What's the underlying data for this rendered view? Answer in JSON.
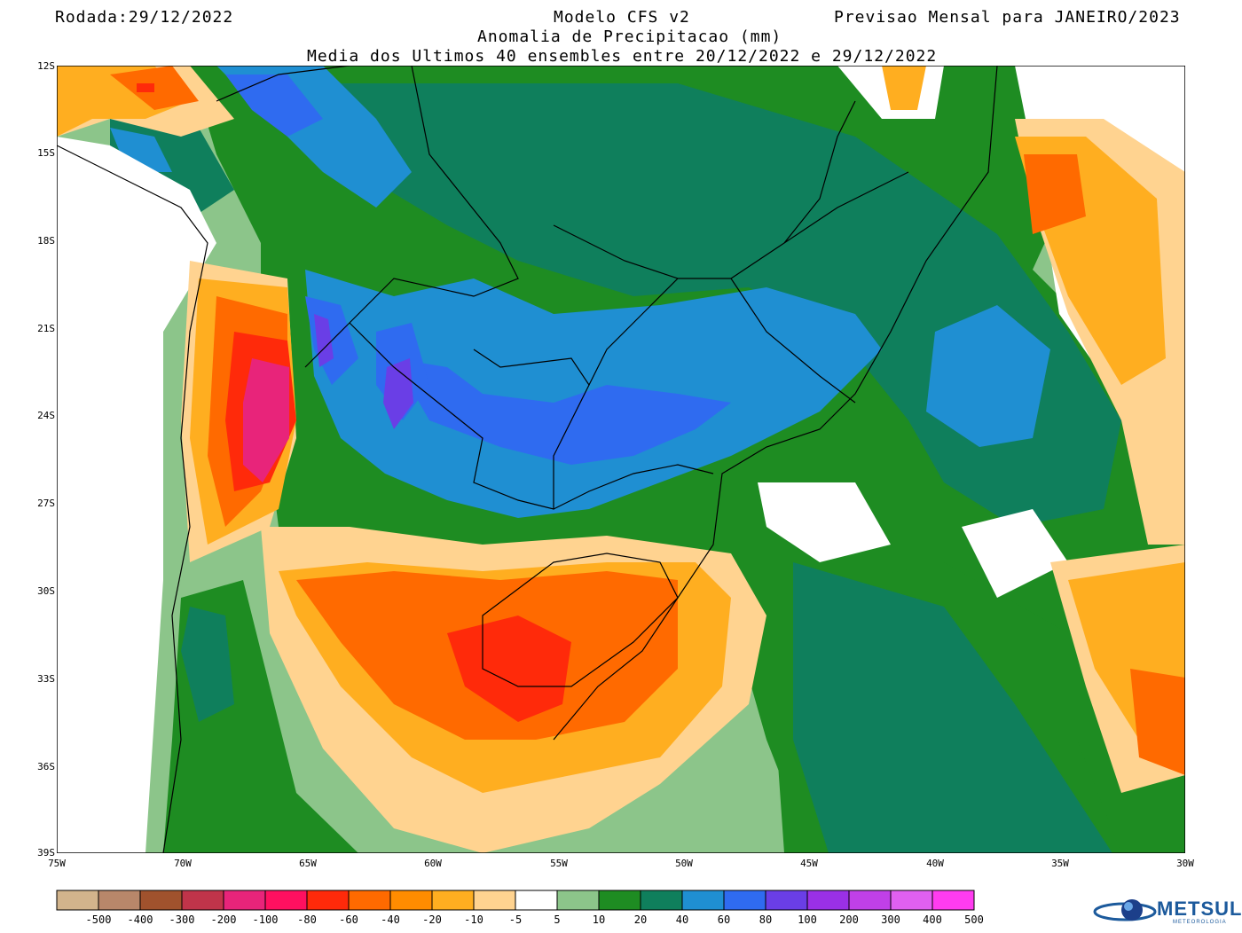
{
  "header": {
    "run_date": "Rodada:29/12/2022",
    "model": "Modelo CFS v2",
    "forecast": "Previsao Mensal para JANEIRO/2023",
    "variable": "Anomalia de Precipitacao (mm)",
    "ensemble": "Media dos Ultimos 40 ensembles entre 20/12/2022 e 29/12/2022"
  },
  "axes": {
    "lat_labels": [
      "12S",
      "15S",
      "18S",
      "21S",
      "24S",
      "27S",
      "30S",
      "33S",
      "36S",
      "39S"
    ],
    "lon_labels": [
      "75W",
      "70W",
      "65W",
      "60W",
      "55W",
      "50W",
      "45W",
      "40W",
      "35W",
      "30W"
    ],
    "lat_range": [
      -12,
      -39
    ],
    "lon_range": [
      -75,
      -30
    ]
  },
  "legend": {
    "labels": [
      "-500",
      "-400",
      "-300",
      "-200",
      "-100",
      "-80",
      "-60",
      "-40",
      "-20",
      "-10",
      "-5",
      "5",
      "10",
      "20",
      "40",
      "60",
      "80",
      "100",
      "200",
      "300",
      "400",
      "500"
    ],
    "colors": [
      "#d2b48c",
      "#b8876a",
      "#a0522d",
      "#c0344a",
      "#e8247a",
      "#ff1060",
      "#ff2a0a",
      "#ff6a00",
      "#ff8c00",
      "#ffae20",
      "#ffd390",
      "#ffffff",
      "#8cc58a",
      "#1e8c22",
      "#0f7f5c",
      "#1f8fd2",
      "#2f6bf0",
      "#6a3ee6",
      "#9a30e6",
      "#c040e8",
      "#e060f0",
      "#ff3cf0"
    ]
  },
  "map_colors": {
    "light_orange": "#ffd390",
    "orange": "#ffae20",
    "dark_orange": "#ff6a00",
    "red": "#ff2a0a",
    "magenta": "#e8247a",
    "light_green": "#8cc58a",
    "green": "#1e8c22",
    "dark_green": "#0f7f5c",
    "light_blue": "#1f8fd2",
    "blue": "#2f6bf0",
    "purple": "#6a3ee6"
  },
  "logo": {
    "name": "METSUL",
    "sub": "METEOROLOGIA"
  }
}
